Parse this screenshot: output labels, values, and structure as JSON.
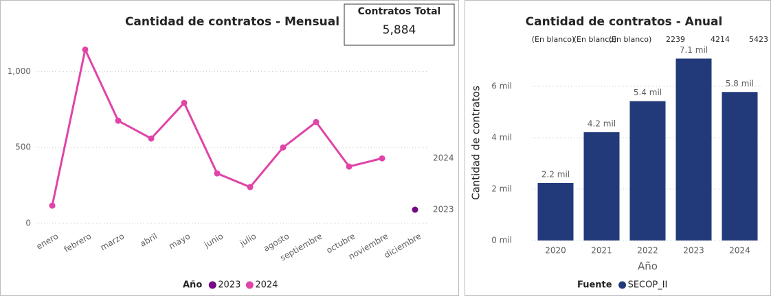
{
  "card": {
    "title": "Contratos Total",
    "value": 5884,
    "value_label": "5,884"
  },
  "chart_data": [
    {
      "type": "line",
      "title": "Cantidad de contratos - Mensual",
      "categories": [
        "enero",
        "febrero",
        "marzo",
        "abril",
        "mayo",
        "junio",
        "julio",
        "agosto",
        "septiembre",
        "octubre",
        "noviembre",
        "diciembre"
      ],
      "series": [
        {
          "name": "2023",
          "color": "#750985",
          "values": [
            null,
            null,
            null,
            null,
            null,
            null,
            null,
            null,
            null,
            null,
            null,
            90
          ]
        },
        {
          "name": "2024",
          "color": "#e044a7",
          "values": [
            117,
            1144,
            676,
            559,
            793,
            329,
            239,
            500,
            667,
            374,
            428,
            null
          ]
        }
      ],
      "ylim": [
        0,
        1200
      ],
      "yticks": [
        0,
        500,
        {
          "value": 1000,
          "label": "1,000"
        }
      ],
      "grid": true,
      "legend_title": "Año",
      "legend": "bottom"
    },
    {
      "type": "bar",
      "title": "Cantidad de contratos - Anual",
      "categories": [
        "2020",
        "2021",
        "2022",
        "2023",
        "2024"
      ],
      "series": [
        {
          "name": "SECOP_II",
          "color": "#233a7a",
          "values": [
            2239,
            4214,
            5423,
            7080,
            5780
          ],
          "value_labels": [
            "2.2 mil",
            "4.2 mil",
            "5.4 mil",
            "7.1 mil",
            "5.8 mil"
          ]
        }
      ],
      "annotations": [
        "(En blanco)",
        "(En blanco)",
        "(En blanco)",
        "2239",
        "4214",
        "5423"
      ],
      "ylim": [
        0,
        7600
      ],
      "yticks": [
        {
          "value": 0,
          "label": "0 mil"
        },
        {
          "value": 2000,
          "label": "2 mil"
        },
        {
          "value": 4000,
          "label": "4 mil"
        },
        {
          "value": 6000,
          "label": "6 mil"
        }
      ],
      "grid": true,
      "y_label": "Cantidad de contratos",
      "x_label": "Año",
      "legend_title": "Fuente",
      "legend": "bottom"
    }
  ]
}
